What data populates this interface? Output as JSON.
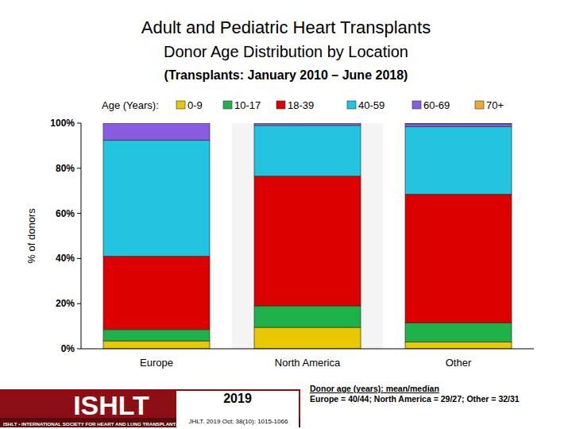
{
  "chart_data": {
    "type": "bar",
    "title": "Adult and Pediatric Heart Transplants",
    "subtitle": "Donor Age Distribution by Location",
    "ylabel": "% of donors",
    "categories": [
      "Europe",
      "North America",
      "Other"
    ],
    "series": [
      {
        "name": "0-9",
        "color": "#e8c800",
        "values": [
          3.5,
          9.5,
          3
        ]
      },
      {
        "name": "10-17",
        "color": "#1fb24a",
        "values": [
          5,
          9.5,
          8.5
        ]
      },
      {
        "name": "18-39",
        "color": "#dd0000",
        "values": [
          32.5,
          57.5,
          57
        ]
      },
      {
        "name": "40-59",
        "color": "#22c4e0",
        "values": [
          51.5,
          22.5,
          30
        ]
      },
      {
        "name": "60-69",
        "color": "#8a5ce0",
        "values": [
          7.5,
          1,
          1.2
        ]
      },
      {
        "name": "70+",
        "color": "#f0a830",
        "values": [
          0,
          0,
          0.3
        ]
      }
    ],
    "ylim": [
      0,
      100
    ],
    "yticks": [
      {
        "value": 0,
        "label": "0%"
      },
      {
        "value": 20,
        "label": "20%"
      },
      {
        "value": 40,
        "label": "40%"
      },
      {
        "value": 60,
        "label": "60%"
      },
      {
        "value": 80,
        "label": "80%"
      },
      {
        "value": 100,
        "label": "100%"
      }
    ],
    "stacked": true,
    "grid": false,
    "legend": "top",
    "annotations": [
      "(Transplants: January 2010 – June 2018)",
      "Age (Years):",
      "Donor age (years): mean/median",
      "Europe = 40/44; North America = 29/27; Other = 32/31",
      "2019",
      "JHLT. 2019 Oct; 38(10): 1015-1066",
      "ISHLT",
      "ISHLT • INTERNATIONAL SOCIETY FOR HEART AND LUNG TRANSPLANTATION"
    ]
  }
}
